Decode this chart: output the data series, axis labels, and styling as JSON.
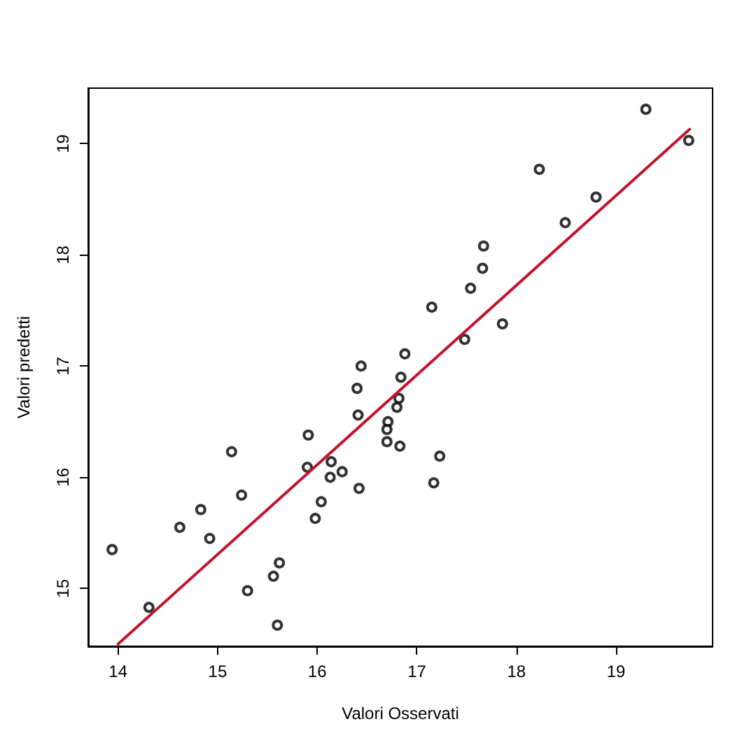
{
  "chart_data": {
    "type": "scatter",
    "xlabel": "Valori Osservati",
    "ylabel": "Valori predetti",
    "xlim": [
      13.7,
      19.97
    ],
    "ylim": [
      14.48,
      19.5
    ],
    "xticks": [
      14,
      15,
      16,
      17,
      18,
      19
    ],
    "yticks": [
      15,
      16,
      17,
      18,
      19
    ],
    "grid": false,
    "series": [
      {
        "color": "#000000",
        "marker": "circle",
        "x": [
          13.94,
          14.31,
          14.62,
          14.83,
          14.92,
          15.14,
          15.24,
          15.3,
          15.56,
          15.62,
          15.6,
          15.91,
          15.9,
          15.98,
          16.04,
          16.13,
          16.14,
          16.25,
          16.42,
          16.41,
          16.4,
          16.44,
          16.71,
          16.7,
          16.7,
          16.83,
          16.8,
          16.82,
          16.84,
          16.88,
          17.23,
          17.17,
          17.15,
          17.48,
          17.54,
          17.66,
          17.67,
          17.86,
          18.23,
          18.49,
          18.8,
          19.3,
          19.73
        ],
        "values": [
          15.35,
          14.83,
          15.55,
          15.71,
          15.45,
          16.23,
          15.84,
          14.98,
          15.11,
          15.23,
          14.67,
          16.38,
          16.09,
          15.63,
          15.78,
          16.0,
          16.14,
          16.05,
          15.9,
          16.56,
          16.8,
          17.0,
          16.5,
          16.43,
          16.32,
          16.28,
          16.63,
          16.71,
          16.9,
          17.11,
          16.19,
          15.95,
          17.53,
          17.24,
          17.7,
          17.88,
          18.08,
          17.38,
          18.77,
          18.29,
          18.52,
          19.31,
          19.03
        ]
      },
      {
        "type": "line",
        "color": "#c0152f",
        "marker": "none",
        "line_style": "solid",
        "x": [
          14.0,
          19.74
        ],
        "values": [
          14.5,
          19.13
        ]
      }
    ]
  }
}
